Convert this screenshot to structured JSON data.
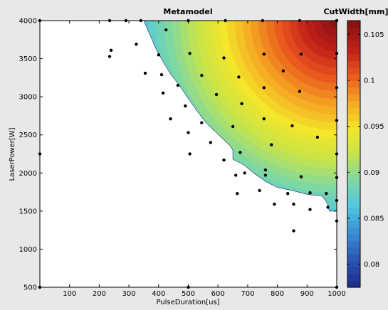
{
  "chart_data": {
    "type": "contour",
    "title": "Metamodel",
    "xlabel": "PulseDuration[us]",
    "ylabel": "LaserPower[W]",
    "colorbar_label": "CutWidth[mm]",
    "xlim": [
      0,
      1000
    ],
    "ylim": [
      500,
      4000
    ],
    "x_ticks": [
      100,
      200,
      300,
      400,
      500,
      600,
      700,
      800,
      900,
      1000
    ],
    "y_ticks": [
      500,
      1000,
      1500,
      2000,
      2500,
      3000,
      3500,
      4000
    ],
    "colorbar_ticks": [
      0.08,
      0.085,
      0.09,
      0.095,
      0.1,
      0.105
    ],
    "colorbar_range": [
      0.0775,
      0.1065
    ],
    "colormap": [
      "#1f2f8c",
      "#2b58b8",
      "#3a8fd6",
      "#4fc8e0",
      "#7ed8a3",
      "#c6e44a",
      "#f4e62a",
      "#f6a623",
      "#ea5a1e",
      "#c22019",
      "#8c1212"
    ],
    "grid": false,
    "boundary": [
      [
        350,
        4000
      ],
      [
        370,
        3820
      ],
      [
        390,
        3640
      ],
      [
        415,
        3460
      ],
      [
        440,
        3300
      ],
      [
        470,
        3150
      ],
      [
        500,
        2980
      ],
      [
        530,
        2810
      ],
      [
        560,
        2660
      ],
      [
        600,
        2510
      ],
      [
        640,
        2360
      ],
      [
        650,
        2300
      ],
      [
        650,
        2180
      ],
      [
        690,
        2100
      ],
      [
        720,
        2000
      ],
      [
        760,
        1890
      ],
      [
        800,
        1810
      ],
      [
        850,
        1770
      ],
      [
        900,
        1720
      ],
      [
        950,
        1700
      ],
      [
        960,
        1650
      ],
      [
        970,
        1590
      ],
      [
        975,
        1500
      ],
      [
        1000,
        1500
      ],
      [
        1000,
        4000
      ]
    ],
    "samples": [
      [
        0,
        4000
      ],
      [
        0,
        2250
      ],
      [
        0,
        500
      ],
      [
        235,
        4000
      ],
      [
        290,
        4000
      ],
      [
        340,
        4000
      ],
      [
        500,
        4000
      ],
      [
        625,
        4000
      ],
      [
        750,
        4000
      ],
      [
        875,
        4000
      ],
      [
        1000,
        4000
      ],
      [
        235,
        3530
      ],
      [
        240,
        3610
      ],
      [
        325,
        3690
      ],
      [
        425,
        3880
      ],
      [
        400,
        3550
      ],
      [
        505,
        3570
      ],
      [
        620,
        3510
      ],
      [
        755,
        3560
      ],
      [
        820,
        3340
      ],
      [
        880,
        3560
      ],
      [
        1000,
        3570
      ],
      [
        355,
        3310
      ],
      [
        410,
        3290
      ],
      [
        465,
        3150
      ],
      [
        545,
        3280
      ],
      [
        670,
        3260
      ],
      [
        415,
        3050
      ],
      [
        595,
        3030
      ],
      [
        755,
        3120
      ],
      [
        875,
        3070
      ],
      [
        1000,
        3120
      ],
      [
        490,
        2880
      ],
      [
        680,
        2910
      ],
      [
        440,
        2710
      ],
      [
        545,
        2660
      ],
      [
        755,
        2710
      ],
      [
        850,
        2620
      ],
      [
        935,
        2470
      ],
      [
        1000,
        2690
      ],
      [
        500,
        2530
      ],
      [
        650,
        2610
      ],
      [
        575,
        2400
      ],
      [
        780,
        2370
      ],
      [
        675,
        2270
      ],
      [
        505,
        2250
      ],
      [
        620,
        2170
      ],
      [
        1000,
        2250
      ],
      [
        690,
        2000
      ],
      [
        760,
        2040
      ],
      [
        760,
        1970
      ],
      [
        880,
        1950
      ],
      [
        1000,
        1940
      ],
      [
        660,
        1970
      ],
      [
        740,
        1770
      ],
      [
        665,
        1730
      ],
      [
        835,
        1730
      ],
      [
        910,
        1740
      ],
      [
        965,
        1730
      ],
      [
        790,
        1590
      ],
      [
        855,
        1590
      ],
      [
        910,
        1520
      ],
      [
        970,
        1550
      ],
      [
        1000,
        1640
      ],
      [
        1000,
        1370
      ],
      [
        855,
        1240
      ],
      [
        500,
        500
      ],
      [
        1000,
        500
      ]
    ]
  }
}
